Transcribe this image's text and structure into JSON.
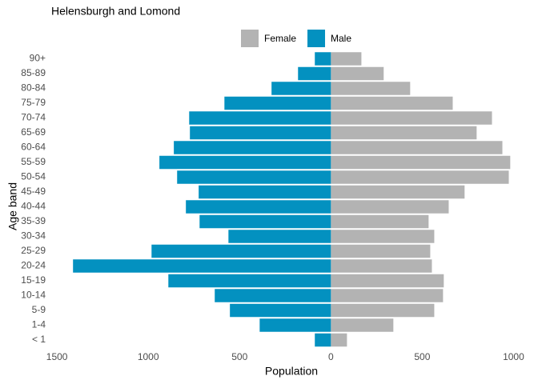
{
  "chart_data": {
    "type": "pyramid",
    "title": "Helensburgh and Lomond",
    "x_label": "Population",
    "y_label": "Age band",
    "categories": [
      "< 1",
      "1-4",
      "5-9",
      "10-14",
      "15-19",
      "20-24",
      "25-29",
      "30-34",
      "35-39",
      "40-44",
      "45-49",
      "50-54",
      "55-59",
      "60-64",
      "65-69",
      "70-74",
      "75-79",
      "80-84",
      "85-89",
      "90+"
    ],
    "series": [
      {
        "name": "Female",
        "color": "#b3b3b3",
        "values": [
          88,
          342,
          566,
          614,
          618,
          553,
          544,
          566,
          535,
          645,
          732,
          974,
          982,
          939,
          798,
          882,
          667,
          434,
          289,
          167
        ]
      },
      {
        "name": "Male",
        "color": "#0391c0",
        "values": [
          -88,
          -390,
          -553,
          -636,
          -890,
          -1412,
          -982,
          -561,
          -719,
          -794,
          -724,
          -842,
          -939,
          -860,
          -772,
          -776,
          -583,
          -325,
          -180,
          -88
        ]
      }
    ],
    "xlim": [
      -1540,
      1020
    ],
    "xticks": [
      {
        "value": -1500,
        "label": "1500"
      },
      {
        "value": -1000,
        "label": "1000"
      },
      {
        "value": -500,
        "label": "500"
      },
      0,
      500,
      1000
    ],
    "grid": false,
    "legend": "top"
  }
}
